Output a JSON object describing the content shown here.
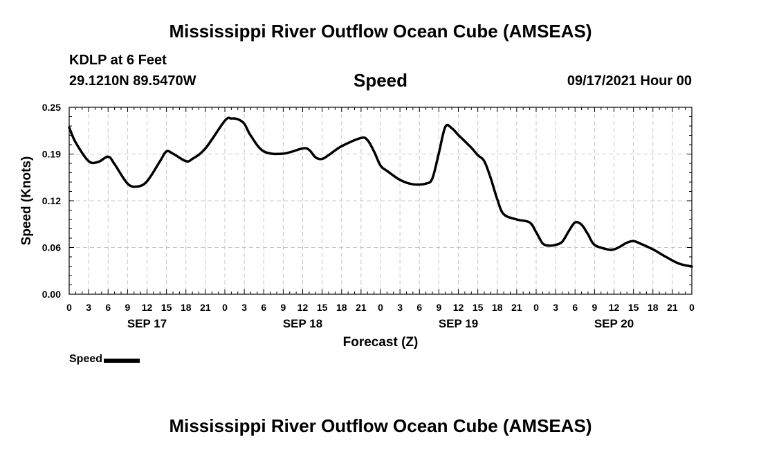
{
  "header": {
    "title": "Mississippi River Outflow Ocean Cube (AMSEAS)",
    "station": "KDLP at 6 Feet",
    "coords": "29.1210N  89.5470W",
    "parameter": "Speed",
    "datetime": "09/17/2021 Hour 00"
  },
  "footer": {
    "title": "Mississippi River Outflow Ocean Cube (AMSEAS)"
  },
  "legend": {
    "label": "Speed"
  },
  "chart_data": {
    "type": "line",
    "title": "Speed",
    "xlabel": "Forecast (Z)",
    "ylabel": "Speed (Knots)",
    "xlim": [
      0,
      96
    ],
    "ylim": [
      0,
      0.25
    ],
    "grid": true,
    "yticks": [
      {
        "value": 0.0,
        "label": "0.00"
      },
      {
        "value": 0.0625,
        "label": "0.06"
      },
      {
        "value": 0.125,
        "label": "0.12"
      },
      {
        "value": 0.1875,
        "label": "0.19"
      },
      {
        "value": 0.25,
        "label": "0.25"
      }
    ],
    "xtick_labels": [
      "0",
      "3",
      "6",
      "9",
      "12",
      "15",
      "18",
      "21",
      "0",
      "3",
      "6",
      "9",
      "12",
      "15",
      "18",
      "21",
      "0",
      "3",
      "6",
      "9",
      "12",
      "15",
      "18",
      "21",
      "0",
      "3",
      "6",
      "9",
      "12",
      "15",
      "18",
      "21",
      "0"
    ],
    "day_labels": [
      {
        "hour": 12,
        "label": "SEP 17"
      },
      {
        "hour": 36,
        "label": "SEP 18"
      },
      {
        "hour": 60,
        "label": "SEP 19"
      },
      {
        "hour": 84,
        "label": "SEP 20"
      }
    ],
    "series": [
      {
        "name": "Speed",
        "x": [
          0,
          1,
          3,
          4.5,
          6,
          7,
          9,
          10.5,
          12,
          14,
          15,
          16,
          18,
          19,
          21,
          24,
          25,
          26,
          27,
          28,
          30,
          33,
          36,
          37,
          38,
          39,
          40,
          42,
          45,
          46,
          47,
          48,
          49,
          51,
          53,
          55,
          56,
          57,
          58,
          59,
          60,
          62,
          63,
          64,
          65,
          66,
          67,
          69,
          71,
          72,
          73,
          74,
          75,
          76,
          77,
          78,
          79,
          80,
          81,
          83,
          84,
          85,
          86,
          87,
          88,
          90,
          92,
          94,
          96
        ],
        "values": [
          0.223,
          0.203,
          0.178,
          0.177,
          0.184,
          0.174,
          0.148,
          0.144,
          0.151,
          0.178,
          0.191,
          0.188,
          0.178,
          0.181,
          0.195,
          0.232,
          0.235,
          0.234,
          0.228,
          0.212,
          0.191,
          0.188,
          0.195,
          0.193,
          0.183,
          0.181,
          0.186,
          0.198,
          0.209,
          0.206,
          0.191,
          0.172,
          0.165,
          0.153,
          0.147,
          0.148,
          0.155,
          0.189,
          0.224,
          0.222,
          0.213,
          0.196,
          0.186,
          0.178,
          0.155,
          0.127,
          0.107,
          0.1,
          0.096,
          0.083,
          0.068,
          0.065,
          0.066,
          0.07,
          0.084,
          0.096,
          0.093,
          0.08,
          0.066,
          0.06,
          0.06,
          0.064,
          0.069,
          0.071,
          0.068,
          0.06,
          0.05,
          0.041,
          0.037
        ]
      }
    ]
  }
}
